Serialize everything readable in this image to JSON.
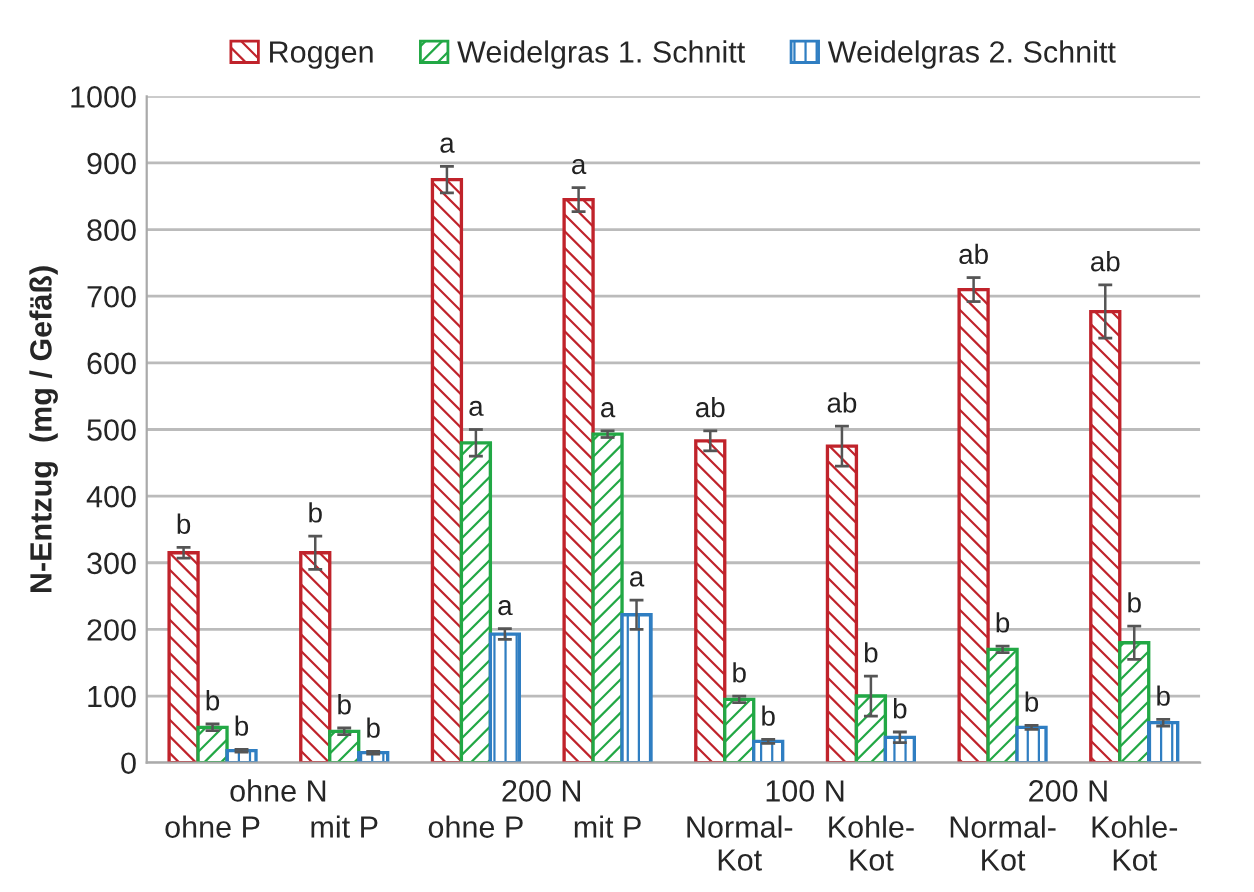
{
  "chart_data": {
    "type": "bar",
    "ylabel": "N-Entzug  (mg / Gefäß)",
    "categories": [
      "ohne P",
      "mit P",
      "ohne P",
      "mit P",
      "Normal-\nKot",
      "Kohle-\nKot",
      "Normal-\nKot",
      "Kohle-\nKot"
    ],
    "annotations": [
      "ohne N",
      "200 N",
      "100 N",
      "200 N"
    ],
    "series": [
      {
        "name": "Roggen",
        "color": "#c0232b",
        "values": [
          315,
          315,
          875,
          845,
          483,
          475,
          710,
          677
        ],
        "errors": [
          8,
          25,
          20,
          18,
          15,
          30,
          18,
          40
        ],
        "value_labels": [
          "b",
          "b",
          "a",
          "a",
          "ab",
          "ab",
          "ab",
          "ab"
        ]
      },
      {
        "name": "Weidelgras 1. Schnitt",
        "color": "#22a845",
        "values": [
          53,
          47,
          480,
          493,
          95,
          100,
          170,
          180
        ],
        "errors": [
          5,
          5,
          20,
          5,
          5,
          30,
          5,
          25
        ],
        "value_labels": [
          "b",
          "b",
          "a",
          "a",
          "b",
          "b",
          "b",
          "b"
        ]
      },
      {
        "name": "Weidelgras 2. Schnitt",
        "color": "#2f7ec2",
        "values": [
          18,
          15,
          193,
          222,
          32,
          38,
          53,
          60
        ],
        "errors": [
          2,
          2,
          8,
          22,
          3,
          8,
          3,
          5
        ],
        "value_labels": [
          "b",
          "b",
          "a",
          "a",
          "b",
          "b",
          "b",
          "b"
        ]
      }
    ],
    "ylim": [
      0,
      1000
    ],
    "yticks": [
      0,
      100,
      200,
      300,
      400,
      500,
      600,
      700,
      800,
      900,
      1000
    ],
    "grid": "y",
    "legend": "top"
  }
}
